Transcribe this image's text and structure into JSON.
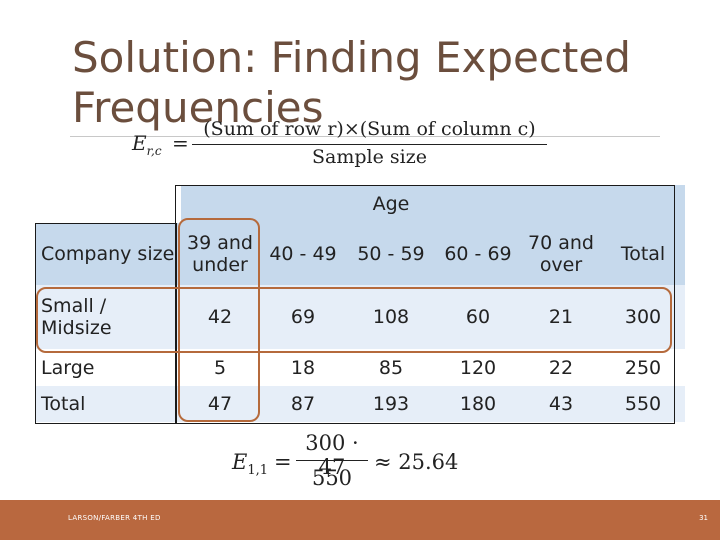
{
  "title": "Solution: Finding Expected Frequencies",
  "formula_general": {
    "lhs": "E",
    "subscript": "r,c",
    "equals": "=",
    "numerator": "(Sum of row r)×(Sum of column c)",
    "denominator": "Sample size"
  },
  "formula_example": {
    "lhs": "E",
    "subscript": "1,1",
    "equals": "=",
    "numerator": "300 · 47",
    "denominator": "550",
    "result": "≈ 25.64"
  },
  "table": {
    "group_header": "Age",
    "row_header": "Company size",
    "columns": [
      "39 and under",
      "40 - 49",
      "50 - 59",
      "60 - 69",
      "70 and over",
      "Total"
    ],
    "rows": [
      {
        "label": "Small / Midsize",
        "values": [
          "42",
          "69",
          "108",
          "60",
          "21",
          "300"
        ]
      },
      {
        "label": "Large",
        "values": [
          "5",
          "18",
          "85",
          "120",
          "22",
          "250"
        ]
      },
      {
        "label": "Total",
        "values": [
          "47",
          "87",
          "193",
          "180",
          "43",
          "550"
        ]
      }
    ]
  },
  "footer": {
    "text": "LARSON/FARBER 4TH ED",
    "page": "31"
  },
  "colors": {
    "accent": "#b9683f",
    "title": "#6b4e3d",
    "table_header": "#c6d9ec",
    "table_row_alt": "#e6eef8",
    "highlight": "#b56a3c"
  }
}
